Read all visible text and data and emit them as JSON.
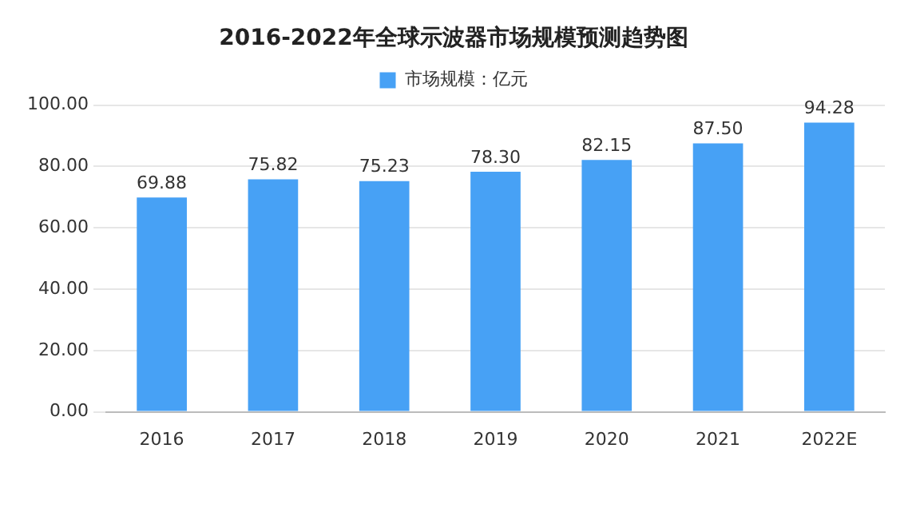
{
  "chart_data": {
    "type": "bar",
    "title": "2016-2022年全球示波器市场规模预测趋势图",
    "categories": [
      "2016",
      "2017",
      "2018",
      "2019",
      "2020",
      "2021",
      "2022E"
    ],
    "series": [
      {
        "name": "市场规模：亿元",
        "color": "#47a1f5",
        "values": [
          69.88,
          75.82,
          75.23,
          78.3,
          82.15,
          87.5,
          94.28
        ],
        "value_labels": [
          "69.88",
          "75.82",
          "75.23",
          "78.30",
          "82.15",
          "87.50",
          "94.28"
        ]
      }
    ],
    "ylim": [
      0,
      100
    ],
    "yticks": [
      {
        "value": 0,
        "label": "0.00"
      },
      {
        "value": 20,
        "label": "20.00"
      },
      {
        "value": 40,
        "label": "40.00"
      },
      {
        "value": 60,
        "label": "60.00"
      },
      {
        "value": 80,
        "label": "80.00"
      },
      {
        "value": 100,
        "label": "100.00"
      }
    ],
    "grid": "y",
    "legend": "top"
  }
}
